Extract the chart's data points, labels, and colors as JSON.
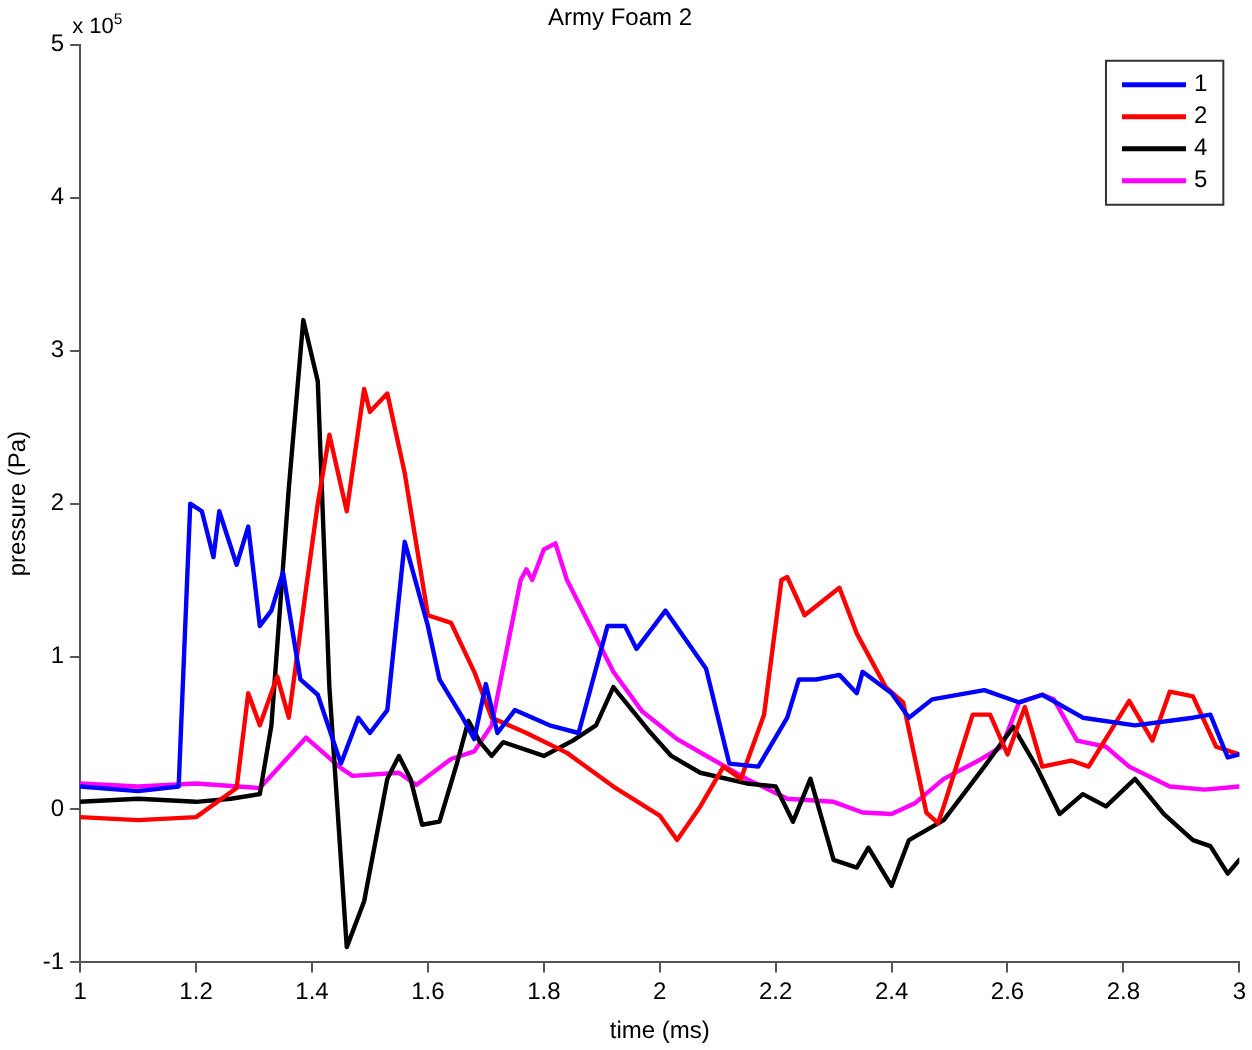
{
  "chart_data": {
    "type": "line",
    "title": "Army Foam 2",
    "xlabel": "time (ms)",
    "ylabel": "pressure (Pa)",
    "annotations": [
      "x 10$^{5}$"
    ],
    "xlim": [
      1,
      3
    ],
    "xticks": [
      1,
      1.2,
      1.4,
      1.6,
      1.8,
      2,
      2.2,
      2.4,
      2.6,
      2.8,
      3
    ],
    "ylim": [
      -1,
      5
    ],
    "yticks": [
      -1,
      0,
      1,
      2,
      3,
      4,
      5
    ],
    "grid": false,
    "legend": "top right",
    "marker": "none",
    "line_style": "solid",
    "series": [
      {
        "name": "1",
        "color": "#0000ff",
        "x": [
          1,
          1.1,
          1.17,
          1.19,
          1.21,
          1.23,
          1.24,
          1.27,
          1.29,
          1.31,
          1.33,
          1.35,
          1.38,
          1.41,
          1.45,
          1.48,
          1.5,
          1.53,
          1.56,
          1.6,
          1.62,
          1.66,
          1.68,
          1.7,
          1.72,
          1.75,
          1.81,
          1.86,
          1.91,
          1.94,
          1.96,
          2.01,
          2.08,
          2.12,
          2.17,
          2.22,
          2.24,
          2.27,
          2.31,
          2.34,
          2.35,
          2.4,
          2.43,
          2.47,
          2.56,
          2.62,
          2.66,
          2.73,
          2.82,
          2.92,
          2.95,
          2.98,
          3
        ],
        "values": [
          0.15,
          0.12,
          0.15,
          2,
          1.95,
          1.65,
          1.95,
          1.6,
          1.85,
          1.2,
          1.3,
          1.55,
          0.85,
          0.75,
          0.3,
          0.6,
          0.5,
          0.65,
          1.75,
          1.2,
          0.85,
          0.6,
          0.46,
          0.82,
          0.5,
          0.65,
          0.55,
          0.5,
          1.2,
          1.2,
          1.05,
          1.3,
          0.92,
          0.3,
          0.28,
          0.6,
          0.85,
          0.85,
          0.88,
          0.76,
          0.9,
          0.76,
          0.6,
          0.72,
          0.78,
          0.7,
          0.75,
          0.6,
          0.55,
          0.6,
          0.62,
          0.34,
          0.36
        ]
      },
      {
        "name": "2",
        "color": "#ff0000",
        "x": [
          1,
          1.1,
          1.2,
          1.27,
          1.29,
          1.31,
          1.34,
          1.36,
          1.39,
          1.41,
          1.43,
          1.46,
          1.49,
          1.5,
          1.53,
          1.56,
          1.6,
          1.64,
          1.68,
          1.71,
          1.77,
          1.84,
          1.92,
          2,
          2.03,
          2.07,
          2.11,
          2.14,
          2.18,
          2.21,
          2.22,
          2.25,
          2.31,
          2.34,
          2.39,
          2.42,
          2.46,
          2.48,
          2.49,
          2.54,
          2.57,
          2.6,
          2.63,
          2.66,
          2.71,
          2.74,
          2.81,
          2.85,
          2.88,
          2.92,
          2.96,
          3
        ],
        "values": [
          -0.05,
          -0.07,
          -0.05,
          0.14,
          0.76,
          0.55,
          0.87,
          0.6,
          1.45,
          2,
          2.45,
          1.95,
          2.75,
          2.6,
          2.72,
          2.2,
          1.27,
          1.22,
          0.9,
          0.6,
          0.5,
          0.37,
          0.15,
          -0.04,
          -0.2,
          0.02,
          0.28,
          0.2,
          0.62,
          1.5,
          1.52,
          1.27,
          1.45,
          1.15,
          0.8,
          0.7,
          -0.02,
          -0.09,
          0.02,
          0.62,
          0.62,
          0.36,
          0.67,
          0.28,
          0.32,
          0.28,
          0.71,
          0.45,
          0.77,
          0.74,
          0.41,
          0.36
        ]
      },
      {
        "name": "4",
        "color": "#000000",
        "x": [
          1,
          1.1,
          1.2,
          1.26,
          1.31,
          1.33,
          1.36,
          1.385,
          1.41,
          1.43,
          1.46,
          1.49,
          1.53,
          1.55,
          1.57,
          1.59,
          1.62,
          1.65,
          1.67,
          1.69,
          1.71,
          1.73,
          1.8,
          1.85,
          1.89,
          1.92,
          1.98,
          2.02,
          2.07,
          2.15,
          2.2,
          2.23,
          2.26,
          2.3,
          2.34,
          2.36,
          2.4,
          2.43,
          2.49,
          2.56,
          2.61,
          2.65,
          2.69,
          2.73,
          2.77,
          2.82,
          2.87,
          2.92,
          2.95,
          2.98,
          3
        ],
        "values": [
          0.05,
          0.07,
          0.05,
          0.07,
          0.1,
          0.55,
          2.1,
          3.2,
          2.8,
          0.8,
          -0.9,
          -0.6,
          0.2,
          0.35,
          0.2,
          -0.1,
          -0.08,
          0.3,
          0.58,
          0.44,
          0.35,
          0.44,
          0.35,
          0.45,
          0.55,
          0.8,
          0.52,
          0.35,
          0.24,
          0.17,
          0.15,
          -0.08,
          0.2,
          -0.33,
          -0.38,
          -0.25,
          -0.5,
          -0.2,
          -0.07,
          0.28,
          0.54,
          0.28,
          -0.03,
          0.1,
          0.02,
          0.2,
          -0.03,
          -0.2,
          -0.24,
          -0.42,
          -0.33
        ]
      },
      {
        "name": "5",
        "color": "#ff00ff",
        "x": [
          1,
          1.1,
          1.2,
          1.31,
          1.39,
          1.45,
          1.47,
          1.55,
          1.58,
          1.64,
          1.68,
          1.71,
          1.76,
          1.77,
          1.78,
          1.8,
          1.82,
          1.84,
          1.92,
          1.97,
          2.03,
          2.09,
          2.15,
          2.22,
          2.3,
          2.35,
          2.4,
          2.44,
          2.49,
          2.55,
          2.59,
          2.62,
          2.66,
          2.68,
          2.72,
          2.77,
          2.81,
          2.88,
          2.94,
          3
        ],
        "values": [
          0.17,
          0.15,
          0.17,
          0.14,
          0.47,
          0.27,
          0.22,
          0.24,
          0.16,
          0.33,
          0.38,
          0.55,
          1.5,
          1.57,
          1.5,
          1.7,
          1.74,
          1.5,
          0.9,
          0.64,
          0.46,
          0.33,
          0.2,
          0.07,
          0.05,
          -0.02,
          -0.03,
          0.04,
          0.2,
          0.32,
          0.41,
          0.7,
          0.75,
          0.72,
          0.45,
          0.41,
          0.28,
          0.15,
          0.13,
          0.15
        ]
      }
    ]
  }
}
